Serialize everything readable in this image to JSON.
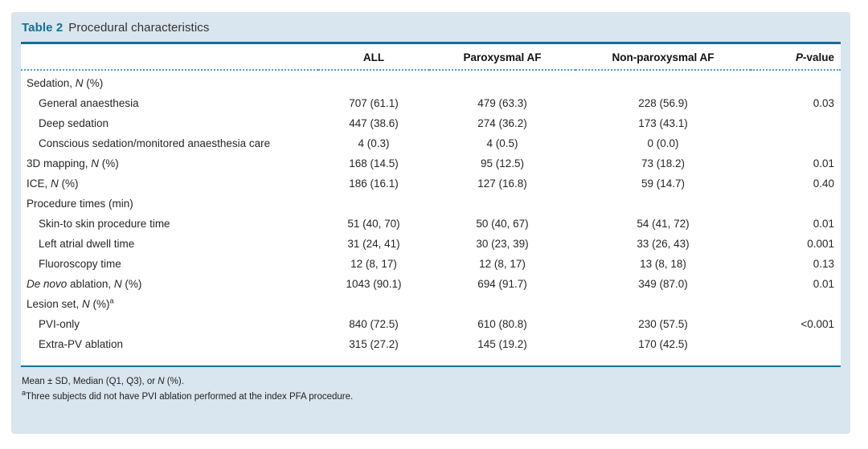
{
  "title": {
    "label": "Table 2",
    "caption": "Procedural characteristics"
  },
  "colors": {
    "accent_teal": "#156f96",
    "card_background": "#d9e5ef",
    "dotted_separator": "#4e9ec2",
    "body_text": "#262626"
  },
  "columns": {
    "all": "ALL",
    "paroxysmal": "Paroxysmal AF",
    "non_paroxysmal": "Non-paroxysmal AF",
    "p_value": [
      [
        "P",
        "i"
      ],
      [
        "-value",
        ""
      ]
    ]
  },
  "rows": [
    {
      "label": [
        [
          "Sedation, ",
          ""
        ],
        [
          "N",
          "i"
        ],
        [
          " (%)",
          ""
        ]
      ],
      "indent": false,
      "all": "",
      "paroxysmal": "",
      "non_paroxysmal": "",
      "p": ""
    },
    {
      "label": [
        [
          "General anaesthesia",
          ""
        ]
      ],
      "indent": true,
      "all": "707 (61.1)",
      "paroxysmal": "479 (63.3)",
      "non_paroxysmal": "228 (56.9)",
      "p": "0.03"
    },
    {
      "label": [
        [
          "Deep sedation",
          ""
        ]
      ],
      "indent": true,
      "all": "447 (38.6)",
      "paroxysmal": "274 (36.2)",
      "non_paroxysmal": "173 (43.1)",
      "p": ""
    },
    {
      "label": [
        [
          "Conscious sedation/monitored anaesthesia care",
          ""
        ]
      ],
      "indent": true,
      "all": "4 (0.3)",
      "paroxysmal": "4 (0.5)",
      "non_paroxysmal": "0 (0.0)",
      "p": ""
    },
    {
      "label": [
        [
          "3D mapping, ",
          ""
        ],
        [
          "N",
          "i"
        ],
        [
          " (%)",
          ""
        ]
      ],
      "indent": false,
      "all": "168 (14.5)",
      "paroxysmal": "95 (12.5)",
      "non_paroxysmal": "73 (18.2)",
      "p": "0.01"
    },
    {
      "label": [
        [
          "ICE, ",
          ""
        ],
        [
          "N",
          "i"
        ],
        [
          " (%)",
          ""
        ]
      ],
      "indent": false,
      "all": "186 (16.1)",
      "paroxysmal": "127 (16.8)",
      "non_paroxysmal": "59 (14.7)",
      "p": "0.40"
    },
    {
      "label": [
        [
          "Procedure times (min)",
          ""
        ]
      ],
      "indent": false,
      "all": "",
      "paroxysmal": "",
      "non_paroxysmal": "",
      "p": ""
    },
    {
      "label": [
        [
          "Skin-to skin procedure time",
          ""
        ]
      ],
      "indent": true,
      "all": "51 (40, 70)",
      "paroxysmal": "50 (40, 67)",
      "non_paroxysmal": "54 (41, 72)",
      "p": "0.01"
    },
    {
      "label": [
        [
          "Left atrial dwell time",
          ""
        ]
      ],
      "indent": true,
      "all": "31 (24, 41)",
      "paroxysmal": "30 (23, 39)",
      "non_paroxysmal": "33 (26, 43)",
      "p": "0.001"
    },
    {
      "label": [
        [
          "Fluoroscopy time",
          ""
        ]
      ],
      "indent": true,
      "all": "12 (8, 17)",
      "paroxysmal": "12 (8, 17)",
      "non_paroxysmal": "13 (8, 18)",
      "p": "0.13"
    },
    {
      "label": [
        [
          "De novo",
          "i"
        ],
        [
          " ablation, ",
          ""
        ],
        [
          "N",
          "i"
        ],
        [
          " (%)",
          ""
        ]
      ],
      "indent": false,
      "all": "1043 (90.1)",
      "paroxysmal": "694 (91.7)",
      "non_paroxysmal": "349 (87.0)",
      "p": "0.01"
    },
    {
      "label": [
        [
          "Lesion set, ",
          ""
        ],
        [
          "N",
          "i"
        ],
        [
          " (%)",
          ""
        ],
        [
          "a",
          "sup"
        ]
      ],
      "indent": false,
      "all": "",
      "paroxysmal": "",
      "non_paroxysmal": "",
      "p": ""
    },
    {
      "label": [
        [
          "PVI-only",
          ""
        ]
      ],
      "indent": true,
      "all": "840 (72.5)",
      "paroxysmal": "610 (80.8)",
      "non_paroxysmal": "230 (57.5)",
      "p": "<0.001"
    },
    {
      "label": [
        [
          "Extra-PV ablation",
          ""
        ]
      ],
      "indent": true,
      "all": "315 (27.2)",
      "paroxysmal": "145 (19.2)",
      "non_paroxysmal": "170 (42.5)",
      "p": ""
    }
  ],
  "footnotes": [
    [
      [
        "Mean ± SD, Median (Q1, Q3), or ",
        ""
      ],
      [
        "N",
        "i"
      ],
      [
        " (%).",
        ""
      ]
    ],
    [
      [
        "a",
        "sup"
      ],
      [
        "Three subjects did not have PVI ablation performed at the index PFA procedure.",
        ""
      ]
    ]
  ]
}
